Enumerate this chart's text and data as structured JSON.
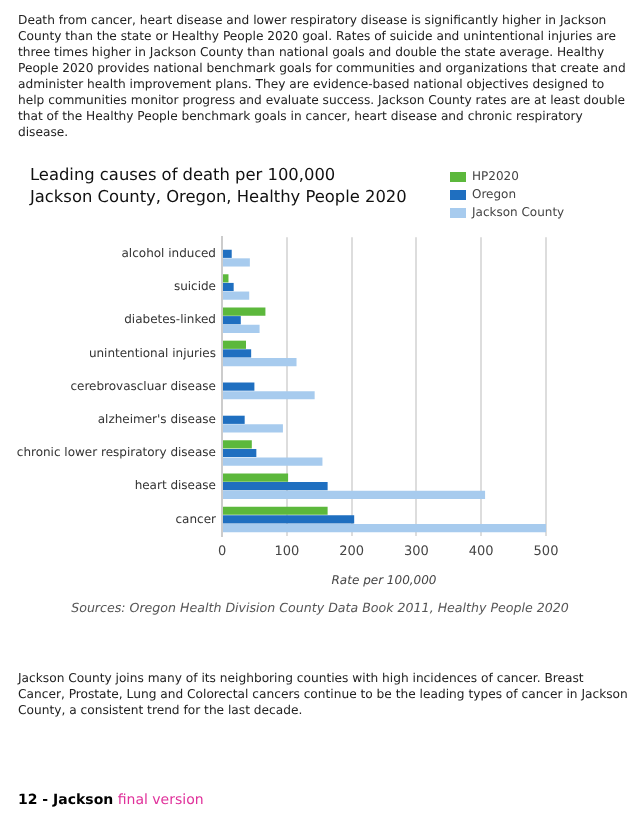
{
  "chart_data": {
    "type": "bar",
    "orientation": "horizontal",
    "title": "Leading causes of death per 100,000",
    "subtitle": "Jackson County, Oregon, Healthy People 2020",
    "xlabel": "Rate per 100,000",
    "categories": [
      "alcohol induced",
      "suicide",
      "diabetes-linked",
      "unintentional injuries",
      "cerebrovascluar disease",
      "alzheimer's disease",
      "chronic lower respiratory disease",
      "heart disease",
      "cancer"
    ],
    "series": [
      {
        "name": "HP2020",
        "color": "#5cb83c",
        "values": [
          null,
          10,
          67,
          37,
          null,
          null,
          46,
          102,
          163
        ]
      },
      {
        "name": "Oregon",
        "color": "#1f6fc0",
        "values": [
          15,
          18,
          29,
          45,
          50,
          35,
          53,
          163,
          204
        ]
      },
      {
        "name": "Jackson County",
        "color": "#a7cbee",
        "values": [
          43,
          42,
          58,
          115,
          143,
          94,
          155,
          406,
          500
        ]
      }
    ],
    "xlim": [
      0,
      500
    ],
    "xticks": [
      0,
      100,
      200,
      300,
      400,
      500
    ],
    "grid": "x",
    "legend": "top right",
    "annotations": [
      "Death from cancer, heart disease and lower respiratory disease is significantly higher in Jackson County than the state or Healthy People 2020 goal. Rates of suicide and unintentional injuries are three times higher in Jackson County than national goals and double the state average. Healthy People 2020 provides national benchmark goals for communities and organizations that create and administer health improvement plans. They are evidence-based national objectives designed to help communities monitor progress and evaluate success. Jackson County rates are at least double that of the Healthy People benchmark goals in cancer, heart disease and chronic respiratory disease.",
      "Sources: Oregon Health Division County Data Book 2011, Healthy People 2020",
      "Jackson County joins many of its neighboring counties with high incidences of cancer. Breast Cancer, Prostate, Lung and Colorectal cancers continue to be the leading types of cancer in Jackson County, a consistent trend for the last decade.",
      "12 - Jackson",
      "final version"
    ]
  }
}
